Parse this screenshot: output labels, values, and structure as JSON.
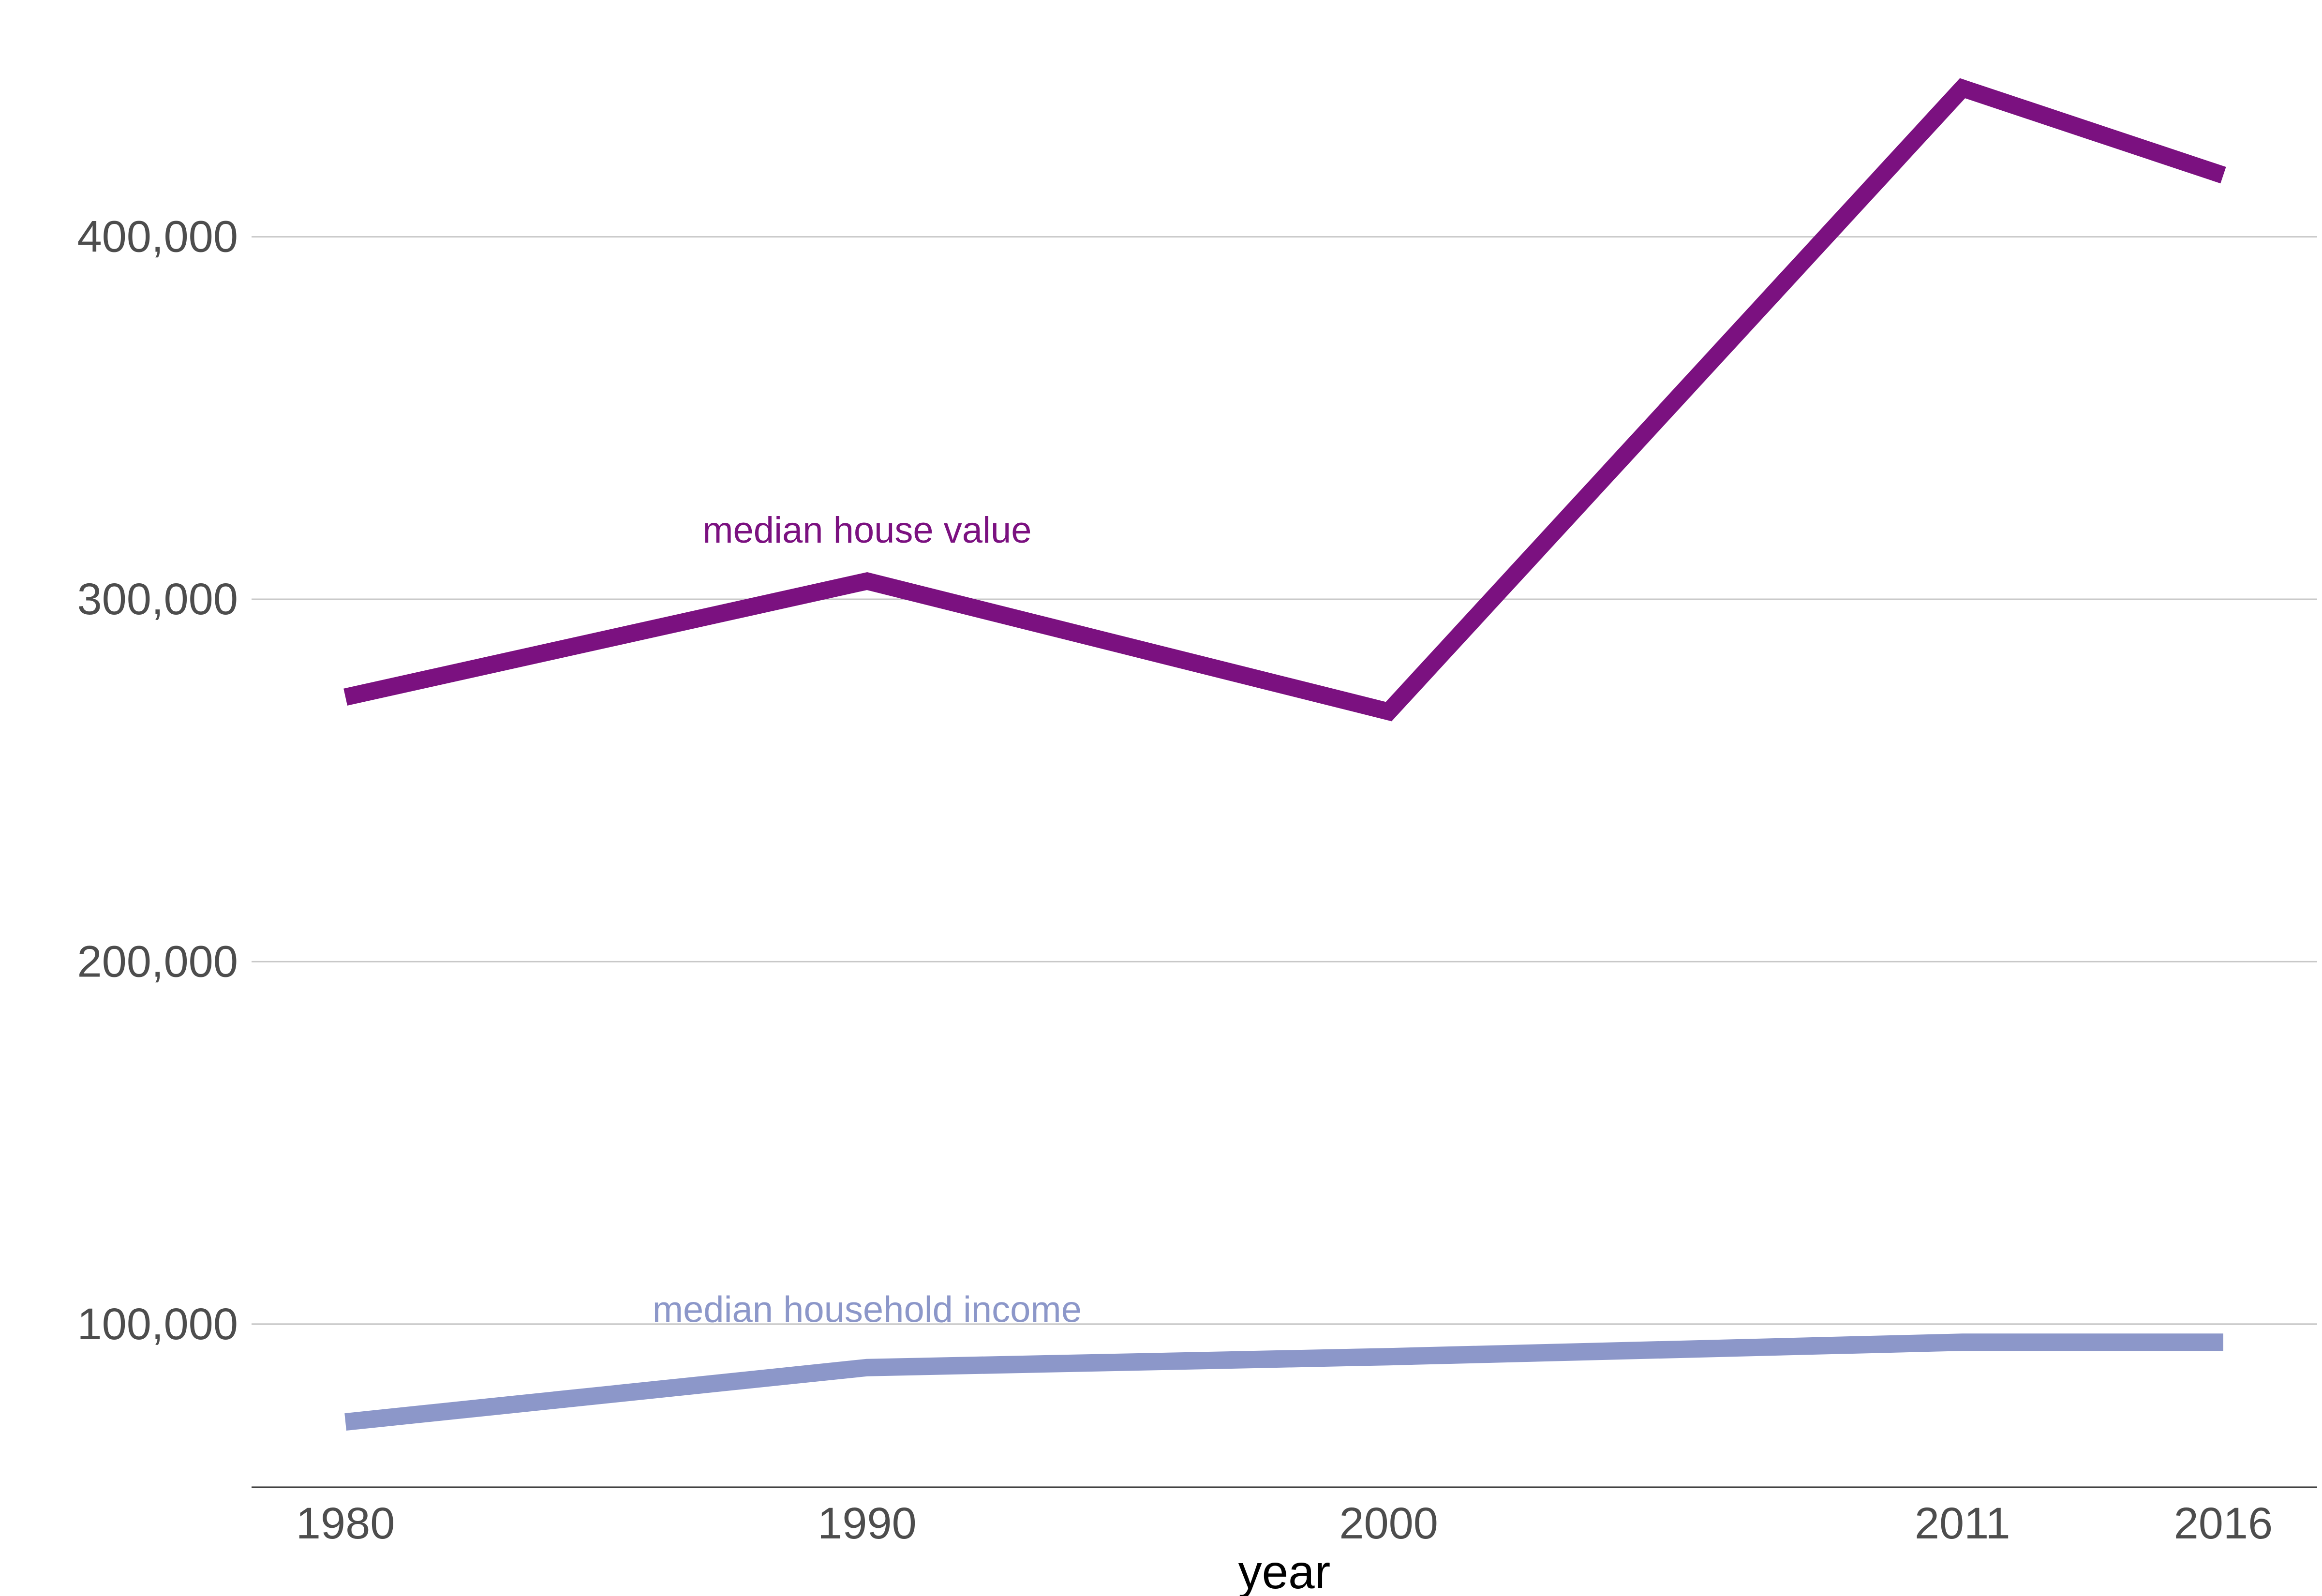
{
  "chart_data": {
    "type": "line",
    "xlabel": "year",
    "ylabel": "",
    "x": [
      1980,
      1990,
      2000,
      2011,
      2016
    ],
    "x_ticks": [
      "1980",
      "1990",
      "2000",
      "2011",
      "2016"
    ],
    "xlim": [
      1978.2,
      2017.8
    ],
    "ylim": [
      55000,
      460000
    ],
    "y_ticks": [
      100000,
      200000,
      300000,
      400000
    ],
    "y_tick_labels": [
      "100,000",
      "200,000",
      "300,000",
      "400,000"
    ],
    "grid": "horizontal major gridlines",
    "legend": "none (direct labels)",
    "series": [
      {
        "name": "median house value",
        "color": "#7b1180",
        "values": [
          273000,
          305000,
          269000,
          441000,
          417000
        ]
      },
      {
        "name": "median household income",
        "color": "#8c97c9",
        "values": [
          73000,
          88000,
          91000,
          95000,
          95000
        ]
      }
    ],
    "annotations": [
      {
        "series": 0,
        "text": "median house value",
        "x": 1990,
        "y": 319000
      },
      {
        "series": 1,
        "text": "median household income",
        "x": 1990,
        "y": 104000
      }
    ]
  }
}
